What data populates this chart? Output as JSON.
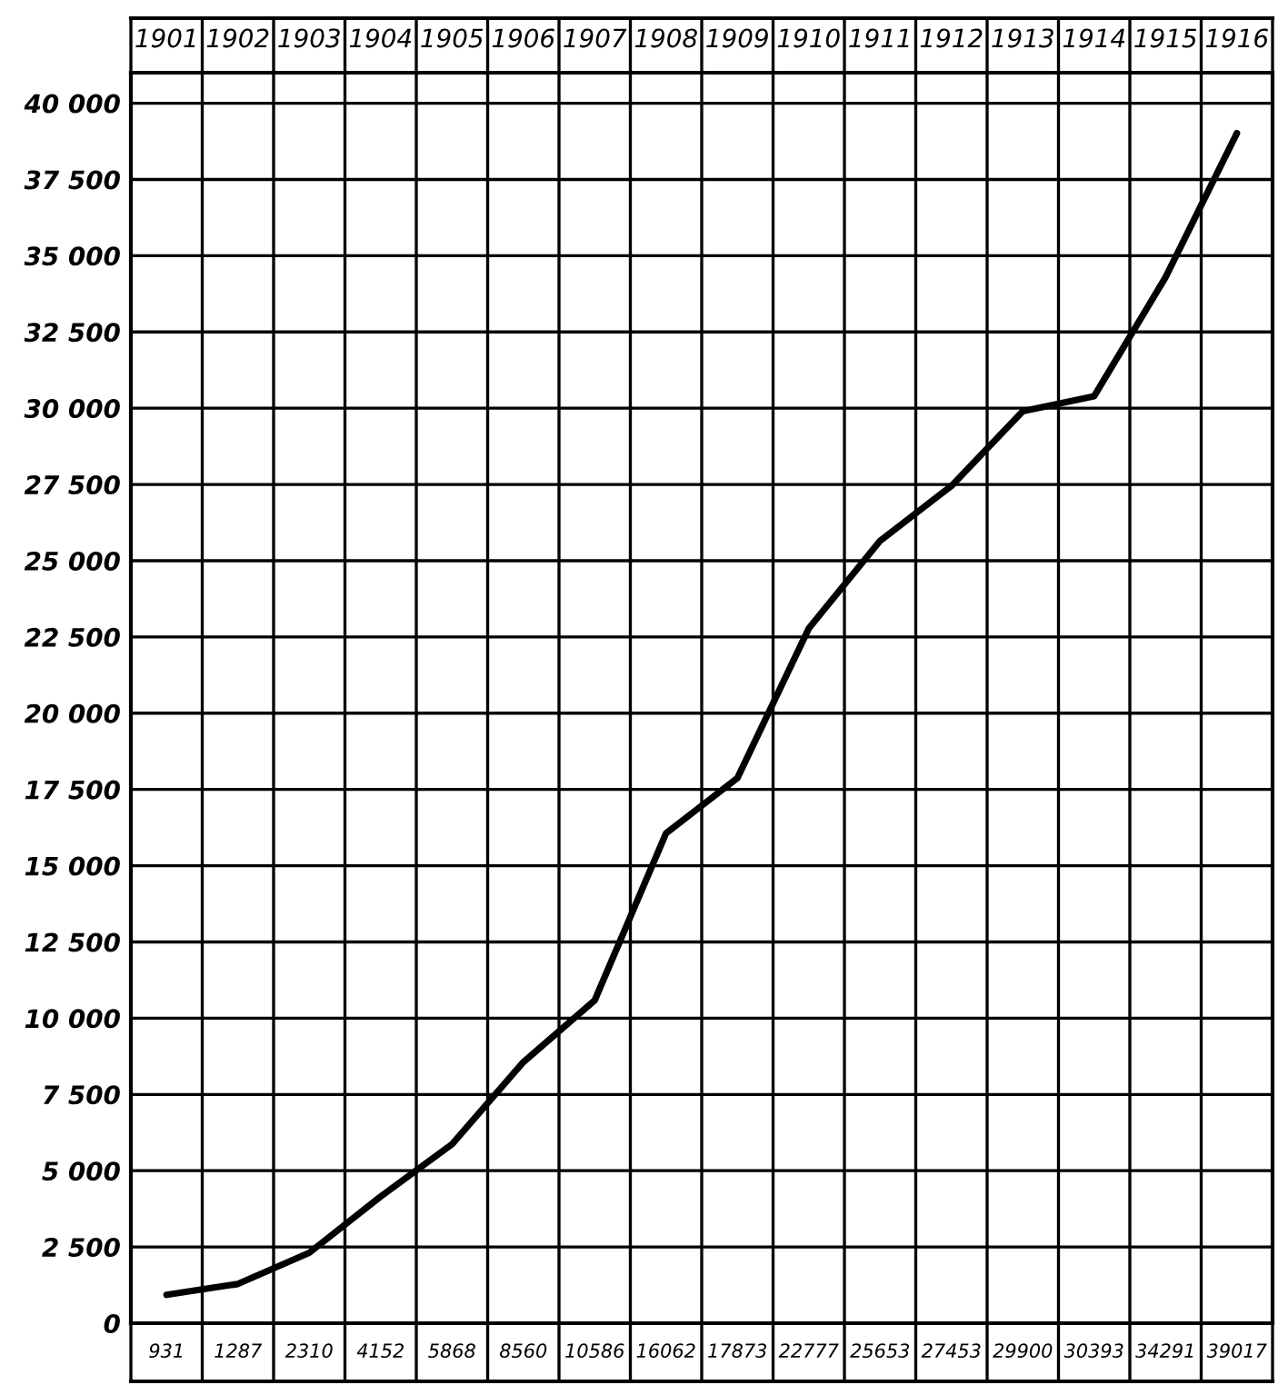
{
  "chart_data": {
    "type": "line",
    "categories": [
      "1901",
      "1902",
      "1903",
      "1904",
      "1905",
      "1906",
      "1907",
      "1908",
      "1909",
      "1910",
      "1911",
      "1912",
      "1913",
      "1914",
      "1915",
      "1916"
    ],
    "series": [
      {
        "color": "#000000",
        "values": [
          931,
          1287,
          2310,
          4152,
          5868,
          8560,
          10586,
          16062,
          17873,
          22777,
          25653,
          27453,
          29900,
          30393,
          34291,
          39017
        ]
      }
    ],
    "data_labels": true,
    "ylim": [
      0,
      41000
    ],
    "yticks": [
      {
        "value": 0,
        "label": "0"
      },
      {
        "value": 2500,
        "label": "2 500"
      },
      {
        "value": 5000,
        "label": "5 000"
      },
      {
        "value": 7500,
        "label": "7 500"
      },
      {
        "value": 10000,
        "label": "10 000"
      },
      {
        "value": 12500,
        "label": "12 500"
      },
      {
        "value": 15000,
        "label": "15 000"
      },
      {
        "value": 17500,
        "label": "17 500"
      },
      {
        "value": 20000,
        "label": "20 000"
      },
      {
        "value": 22500,
        "label": "22 500"
      },
      {
        "value": 25000,
        "label": "25 000"
      },
      {
        "value": 27500,
        "label": "27 500"
      },
      {
        "value": 30000,
        "label": "30 000"
      },
      {
        "value": 32500,
        "label": "32 500"
      },
      {
        "value": 35000,
        "label": "35 000"
      },
      {
        "value": 37500,
        "label": "37 500"
      },
      {
        "value": 40000,
        "label": "40 000"
      }
    ],
    "grid": true,
    "marker": "none",
    "line_style": "solid"
  }
}
